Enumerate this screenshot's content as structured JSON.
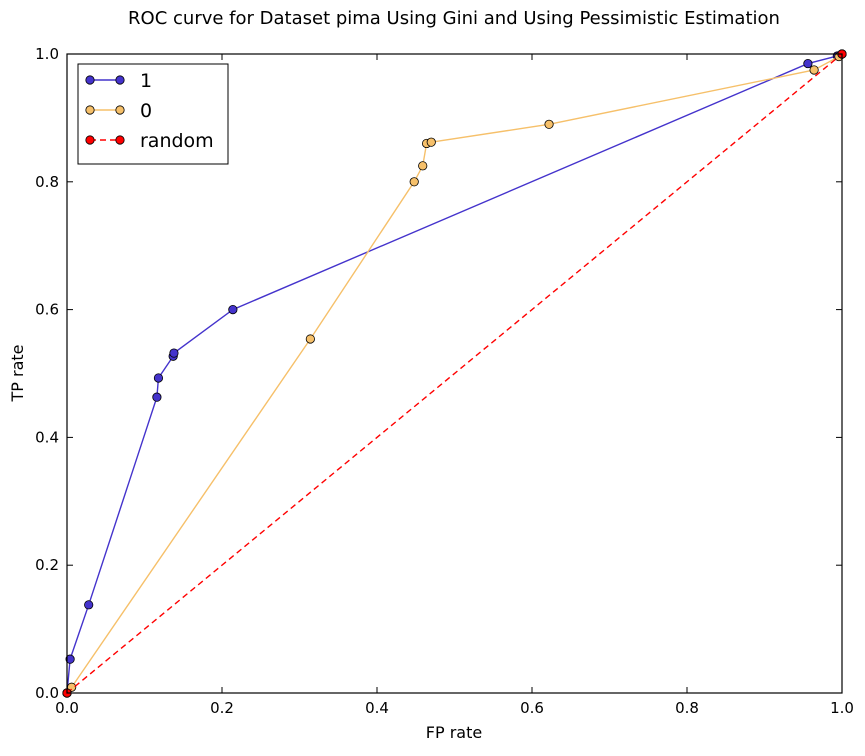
{
  "chart_data": {
    "type": "line",
    "title": "ROC curve for Dataset pima Using Gini and Using Pessimistic Estimation",
    "xlabel": "FP rate",
    "ylabel": "TP rate",
    "xlim": [
      0.0,
      1.0
    ],
    "ylim": [
      0.0,
      1.0
    ],
    "xticks": [
      "0.0",
      "0.2",
      "0.4",
      "0.6",
      "0.8",
      "1.0"
    ],
    "yticks": [
      "0.0",
      "0.2",
      "0.4",
      "0.6",
      "0.8",
      "1.0"
    ],
    "grid": false,
    "legend_position": "top-left",
    "series": [
      {
        "name": "1",
        "color": "#4433cc",
        "line_style": "solid",
        "marker": "circle",
        "x": [
          0.0,
          0.004,
          0.028,
          0.116,
          0.118,
          0.137,
          0.138,
          0.214,
          0.956,
          0.994,
          1.0
        ],
        "y": [
          0.0,
          0.053,
          0.138,
          0.463,
          0.493,
          0.527,
          0.532,
          0.6,
          0.985,
          0.997,
          1.0
        ]
      },
      {
        "name": "0",
        "color": "#f6c06a",
        "line_style": "solid",
        "marker": "circle",
        "x": [
          0.0,
          0.006,
          0.314,
          0.448,
          0.459,
          0.464,
          0.47,
          0.622,
          0.964,
          0.996,
          1.0
        ],
        "y": [
          0.0,
          0.009,
          0.554,
          0.8,
          0.825,
          0.86,
          0.862,
          0.89,
          0.975,
          0.996,
          1.0
        ]
      },
      {
        "name": "random",
        "color": "#ff0000",
        "line_style": "dashed",
        "marker": "circle",
        "x": [
          0.0,
          1.0
        ],
        "y": [
          0.0,
          1.0
        ]
      }
    ]
  }
}
